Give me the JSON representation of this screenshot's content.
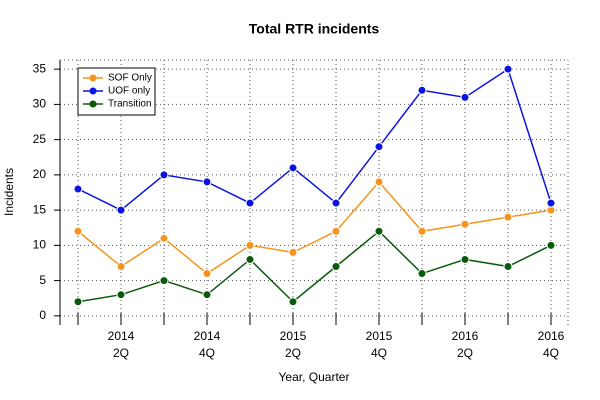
{
  "chart_data": {
    "type": "line",
    "title": "Total RTR incidents",
    "x_label": "Year, Quarter",
    "y_label": "Incidents",
    "categories": [
      null,
      "2014 2Q",
      null,
      "2014 4Q",
      null,
      "2015 2Q",
      null,
      "2015 4Q",
      null,
      "2016 2Q",
      null,
      "2016 4Q"
    ],
    "series": [
      {
        "name": "SOF Only",
        "color": "#f7941d",
        "values": [
          12,
          7,
          11,
          6,
          10,
          9,
          12,
          19,
          12,
          13,
          14,
          15
        ]
      },
      {
        "name": "UOF only",
        "color": "#0a14e0",
        "values": [
          18,
          15,
          20,
          19,
          16,
          21,
          16,
          24,
          32,
          31,
          35,
          16
        ]
      },
      {
        "name": "Transition",
        "color": "#0b5a0b",
        "values": [
          2,
          3,
          5,
          3,
          8,
          2,
          7,
          12,
          6,
          8,
          7,
          10
        ]
      }
    ],
    "ylim": [
      -1.3,
      36.3
    ],
    "yticks": [
      0,
      5,
      10,
      15,
      20,
      25,
      30,
      35
    ],
    "grid": true,
    "legend": "top-left"
  }
}
